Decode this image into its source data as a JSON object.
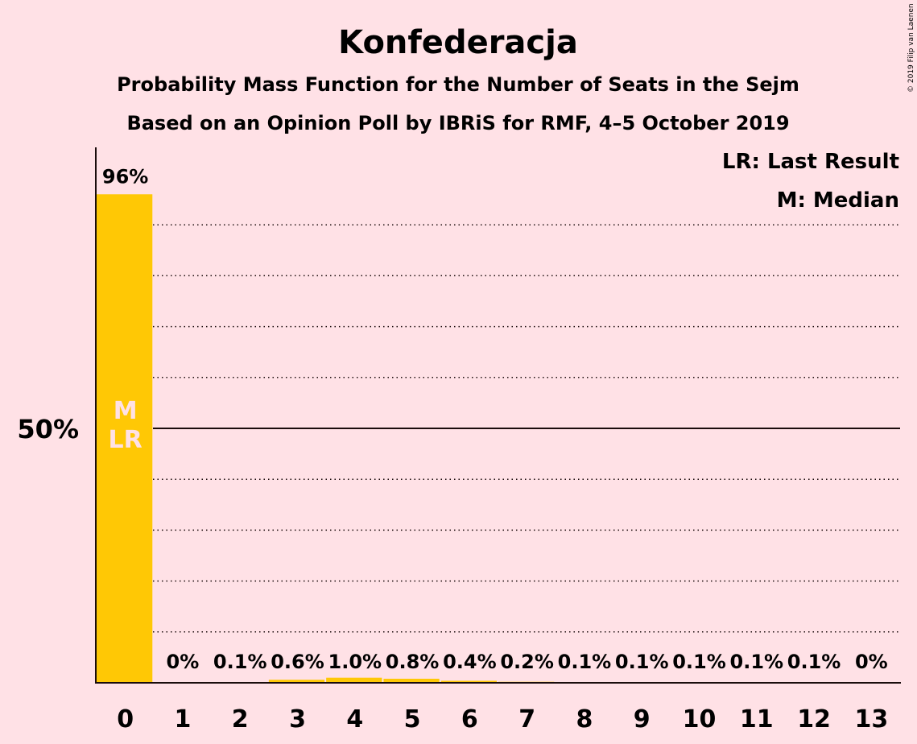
{
  "chart_data": {
    "type": "bar",
    "title": "Konfederacja",
    "subtitle_lines": [
      "Probability Mass Function for the Number of Seats in the Sejm",
      "Based on an Opinion Poll by IBRiS for RMF, 4–5 October 2019"
    ],
    "categories": [
      "0",
      "1",
      "2",
      "3",
      "4",
      "5",
      "6",
      "7",
      "8",
      "9",
      "10",
      "11",
      "12",
      "13"
    ],
    "values": [
      96,
      0,
      0.1,
      0.6,
      1.0,
      0.8,
      0.4,
      0.2,
      0.1,
      0.1,
      0.1,
      0.1,
      0.1,
      0
    ],
    "value_labels": [
      "96%",
      "0%",
      "0.1%",
      "0.6%",
      "1.0%",
      "0.8%",
      "0.4%",
      "0.2%",
      "0.1%",
      "0.1%",
      "0.1%",
      "0.1%",
      "0.1%",
      "0%"
    ],
    "ylim": [
      0,
      105
    ],
    "y_tick_label": "50%",
    "y_tick_value": 50,
    "grid_step": 10,
    "bar_markers": [
      {
        "index": 0,
        "lines": [
          "M",
          "LR"
        ]
      }
    ],
    "legend": [
      "LR: Last Result",
      "M: Median"
    ],
    "legend_position": "top-right",
    "bar_color": "#FFC805",
    "copyright": "© 2019 Filip van Laenen"
  }
}
